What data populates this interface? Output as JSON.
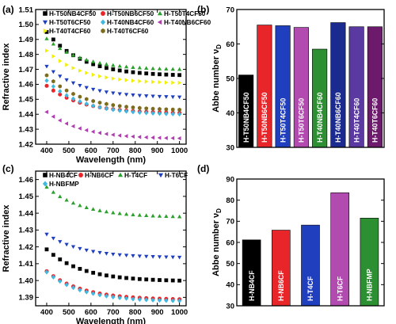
{
  "chart_data": [
    {
      "panel_label": "(a)",
      "type": "scatter",
      "xlabel": "Wavelength (nm)",
      "ylabel": "Refractive index",
      "xlim": [
        350,
        1030
      ],
      "ylim": [
        1.42,
        1.51
      ],
      "xticks": [
        400,
        500,
        600,
        700,
        800,
        900,
        1000
      ],
      "yticks": [
        1.42,
        1.43,
        1.44,
        1.45,
        1.46,
        1.47,
        1.48,
        1.49,
        1.5,
        1.51
      ],
      "x": [
        400,
        430,
        460,
        490,
        520,
        550,
        580,
        610,
        640,
        670,
        700,
        730,
        760,
        790,
        820,
        850,
        880,
        910,
        940,
        970,
        1000
      ],
      "legend_position": "top",
      "series": [
        {
          "name": "H-T50NB4CF50",
          "color": "#000000",
          "marker": "square",
          "n400": 1.495,
          "ninf": 1.4655,
          "k": 0.012
        },
        {
          "name": "H-T50NB6CF50",
          "color": "#e8262a",
          "marker": "circle",
          "n400": 1.459,
          "ninf": 1.4405,
          "k": 0.0075
        },
        {
          "name": "H-T50T4CF50",
          "color": "#2ca02c",
          "marker": "triangle-up",
          "n400": 1.4905,
          "ninf": 1.4695,
          "k": 0.0085
        },
        {
          "name": "H-T50T6CF50",
          "color": "#1f3fbf",
          "marker": "triangle-down",
          "n400": 1.472,
          "ninf": 1.451,
          "k": 0.0085
        },
        {
          "name": "H-T40NB4CF60",
          "color": "#40b8e0",
          "marker": "diamond",
          "n400": 1.4625,
          "ninf": 1.4395,
          "k": 0.0093
        },
        {
          "name": "H-T40NB6CF60",
          "color": "#b03ab0",
          "marker": "triangle-left",
          "n400": 1.4415,
          "ninf": 1.4235,
          "k": 0.0073
        },
        {
          "name": "H-T40T4CF60",
          "color": "#f2f000",
          "marker": "triangle-right",
          "n400": 1.4825,
          "ninf": 1.4605,
          "k": 0.0089
        },
        {
          "name": "H-T40T6CF60",
          "color": "#7d6b1e",
          "marker": "hexagon",
          "n400": 1.466,
          "ninf": 1.4425,
          "k": 0.0095
        }
      ]
    },
    {
      "panel_label": "(b)",
      "type": "bar",
      "ylabel": "Abbe number ν",
      "ylabel_sub": "D",
      "ylim": [
        30,
        70
      ],
      "yticks": [
        30,
        40,
        50,
        60,
        70
      ],
      "categories": [
        "H-T50NB4CF50",
        "H-T50NB6CF50",
        "H-T50T4CF50",
        "H-T50T6CF50",
        "H-T40NB4CF60",
        "H-T40NB6CF60",
        "H-T40T4CF60",
        "H-T40T6CF60"
      ],
      "values": [
        51,
        65.5,
        65.3,
        64.8,
        58.5,
        66.2,
        65.0,
        65.0
      ],
      "colors": [
        "#000000",
        "#e8262a",
        "#1f3fbf",
        "#b24bb0",
        "#2c8f32",
        "#1a2a8f",
        "#5a3aa0",
        "#6d1a6d"
      ]
    },
    {
      "panel_label": "(c)",
      "type": "scatter",
      "xlabel": "Wavelength (nm)",
      "ylabel": "Refractive index",
      "xlim": [
        350,
        1030
      ],
      "ylim": [
        1.385,
        1.465
      ],
      "xticks": [
        400,
        500,
        600,
        700,
        800,
        900,
        1000
      ],
      "yticks": [
        1.39,
        1.4,
        1.41,
        1.42,
        1.43,
        1.44,
        1.45,
        1.46
      ],
      "x": [
        400,
        430,
        460,
        490,
        520,
        550,
        580,
        610,
        640,
        670,
        700,
        730,
        760,
        790,
        820,
        850,
        880,
        910,
        940,
        970,
        1000
      ],
      "legend_position": "top",
      "series": [
        {
          "name": "H-NB4CF",
          "color": "#000000",
          "marker": "square",
          "n400": 1.4185,
          "ninf": 1.3995,
          "k": 0.0087
        },
        {
          "name": "H-NB6CF",
          "color": "#e8262a",
          "marker": "circle",
          "n400": 1.4055,
          "ninf": 1.3885,
          "k": 0.0078
        },
        {
          "name": "H-T4CF",
          "color": "#2ca02c",
          "marker": "triangle-up",
          "n400": 1.4555,
          "ninf": 1.4375,
          "k": 0.0083
        },
        {
          "name": "H-T6CF",
          "color": "#1f3fbf",
          "marker": "triangle-down",
          "n400": 1.4275,
          "ninf": 1.4135,
          "k": 0.0065
        },
        {
          "name": "H-NBFMP",
          "color": "#40b8e0",
          "marker": "diamond",
          "n400": 1.405,
          "ninf": 1.3875,
          "k": 0.008
        }
      ]
    },
    {
      "panel_label": "(d)",
      "type": "bar",
      "ylabel": "Abbe number ν",
      "ylabel_sub": "D",
      "ylim": [
        30,
        90
      ],
      "yticks": [
        30,
        40,
        50,
        60,
        70,
        80,
        90
      ],
      "categories": [
        "H-NB4CF",
        "H-NB6CF",
        "H-T4CF",
        "H-T6CF",
        "H-NBFMP"
      ],
      "values": [
        61.2,
        65.8,
        68.2,
        83.5,
        71.5
      ],
      "colors": [
        "#000000",
        "#e8262a",
        "#1f3fbf",
        "#b24bb0",
        "#2c8f32"
      ]
    }
  ]
}
